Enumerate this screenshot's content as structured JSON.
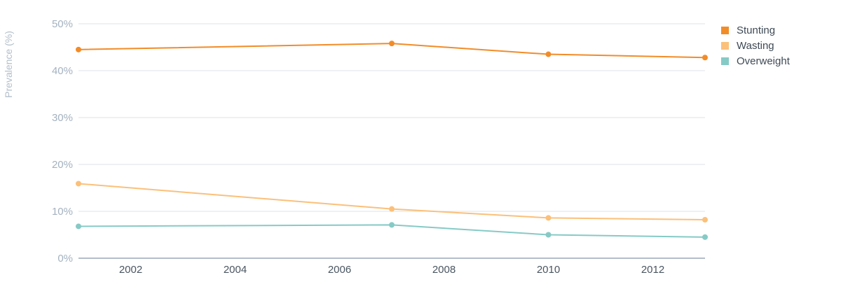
{
  "chart_data": {
    "type": "line",
    "ylabel": "Prevalence (%)",
    "ylim": [
      0,
      50
    ],
    "yticks": [
      0,
      10,
      20,
      30,
      40,
      50
    ],
    "ytick_labels": [
      "0%",
      "10%",
      "20%",
      "30%",
      "40%",
      "50%"
    ],
    "xlim": [
      2001,
      2013
    ],
    "xticks": [
      2002,
      2004,
      2006,
      2008,
      2010,
      2012
    ],
    "xtick_labels": [
      "2002",
      "2004",
      "2006",
      "2008",
      "2010",
      "2012"
    ],
    "grid": true,
    "legend_position": "top-right",
    "x": [
      2001,
      2007,
      2010,
      2013
    ],
    "series": [
      {
        "name": "Stunting",
        "color": "#f28c28",
        "values": [
          44.5,
          45.8,
          43.5,
          42.8
        ]
      },
      {
        "name": "Wasting",
        "color": "#fbc07a",
        "values": [
          15.9,
          10.5,
          8.6,
          8.2
        ]
      },
      {
        "name": "Overweight",
        "color": "#86cac6",
        "values": [
          6.8,
          7.1,
          5.0,
          4.5
        ]
      }
    ]
  }
}
